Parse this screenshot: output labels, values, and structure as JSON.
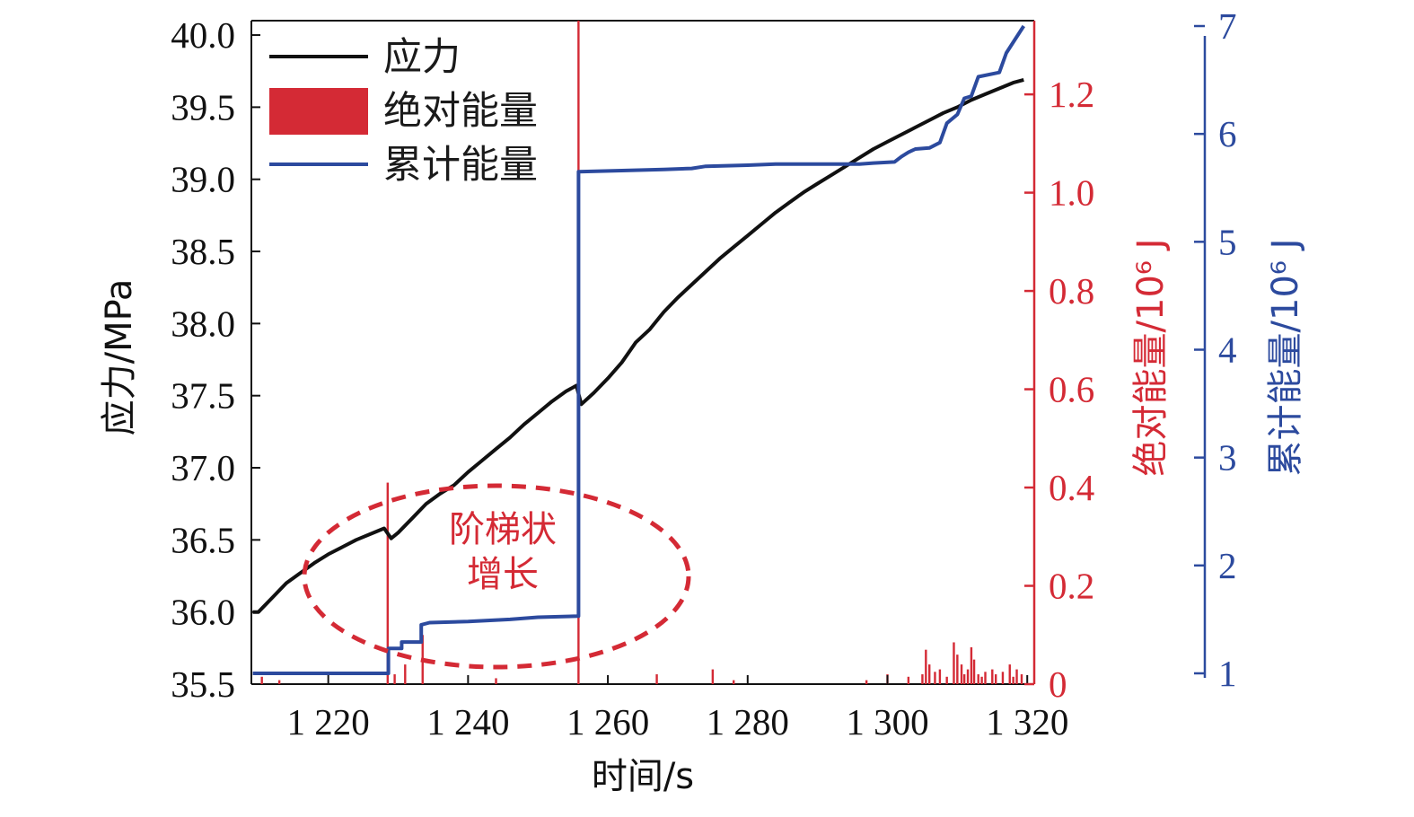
{
  "colors": {
    "stress": "#111111",
    "absolute_energy": "#d42a35",
    "cumulative_energy": "#2c4a9e",
    "axis": "#111111"
  },
  "chart_data": {
    "type": "line",
    "xlabel": "时间/s",
    "xlim": [
      1209,
      1321
    ],
    "x_ticks": [
      1220,
      1240,
      1260,
      1280,
      1300,
      1320
    ],
    "x_tick_labels": [
      "1 220",
      "1 240",
      "1 260",
      "1 280",
      "1 300",
      "1 320"
    ],
    "y_left": {
      "label": "应力/MPa",
      "lim": [
        35.5,
        40.1
      ],
      "ticks": [
        35.5,
        36.0,
        36.5,
        37.0,
        37.5,
        38.0,
        38.5,
        39.0,
        39.5,
        40.0
      ],
      "tick_labels": [
        "35.5",
        "36.0",
        "36.5",
        "37.0",
        "37.5",
        "38.0",
        "38.5",
        "39.0",
        "39.5",
        "40.0"
      ]
    },
    "y_right_1": {
      "label": "绝对能量/10⁶ J",
      "lim": [
        0,
        1.35
      ],
      "ticks": [
        0,
        0.2,
        0.4,
        0.6,
        0.8,
        1.0,
        1.2
      ],
      "tick_labels": [
        "0",
        "0.2",
        "0.4",
        "0.6",
        "0.8",
        "1.0",
        "1.2"
      ]
    },
    "y_right_2": {
      "label": "累计能量/10⁶ J",
      "lim": [
        0.9,
        7.05
      ],
      "ticks": [
        1,
        2,
        3,
        4,
        5,
        6,
        7
      ],
      "tick_labels": [
        "1",
        "2",
        "3",
        "4",
        "5",
        "6",
        "7"
      ]
    },
    "legend": {
      "position": "top-left",
      "entries": [
        "应力",
        "绝对能量",
        "累计能量"
      ]
    },
    "series": [
      {
        "name": "应力",
        "axis": "y_left",
        "kind": "line",
        "points": [
          [
            1209.2,
            36.0
          ],
          [
            1210,
            36.0
          ],
          [
            1212,
            36.1
          ],
          [
            1214,
            36.2
          ],
          [
            1216,
            36.27
          ],
          [
            1218,
            36.34
          ],
          [
            1220,
            36.4
          ],
          [
            1222,
            36.45
          ],
          [
            1224,
            36.5
          ],
          [
            1226,
            36.54
          ],
          [
            1228,
            36.58
          ],
          [
            1229,
            36.51
          ],
          [
            1230,
            36.55
          ],
          [
            1232,
            36.65
          ],
          [
            1234,
            36.75
          ],
          [
            1236,
            36.82
          ],
          [
            1238,
            36.88
          ],
          [
            1240,
            36.97
          ],
          [
            1242,
            37.05
          ],
          [
            1244,
            37.13
          ],
          [
            1246,
            37.21
          ],
          [
            1248,
            37.3
          ],
          [
            1250,
            37.38
          ],
          [
            1252,
            37.46
          ],
          [
            1254,
            37.53
          ],
          [
            1255.5,
            37.57
          ],
          [
            1256.2,
            37.44
          ],
          [
            1258,
            37.52
          ],
          [
            1260,
            37.62
          ],
          [
            1262,
            37.73
          ],
          [
            1264,
            37.87
          ],
          [
            1266,
            37.96
          ],
          [
            1268,
            38.08
          ],
          [
            1270,
            38.18
          ],
          [
            1272,
            38.27
          ],
          [
            1274,
            38.36
          ],
          [
            1276,
            38.45
          ],
          [
            1278,
            38.53
          ],
          [
            1280,
            38.61
          ],
          [
            1282,
            38.69
          ],
          [
            1284,
            38.77
          ],
          [
            1286,
            38.84
          ],
          [
            1288,
            38.91
          ],
          [
            1290,
            38.97
          ],
          [
            1292,
            39.03
          ],
          [
            1294,
            39.09
          ],
          [
            1296,
            39.15
          ],
          [
            1298,
            39.21
          ],
          [
            1300,
            39.26
          ],
          [
            1302,
            39.31
          ],
          [
            1304,
            39.36
          ],
          [
            1306,
            39.41
          ],
          [
            1308,
            39.46
          ],
          [
            1310,
            39.5
          ],
          [
            1312,
            39.55
          ],
          [
            1314,
            39.59
          ],
          [
            1316,
            39.63
          ],
          [
            1318,
            39.67
          ],
          [
            1319.5,
            39.69
          ]
        ]
      },
      {
        "name": "绝对能量",
        "axis": "y_right_1",
        "kind": "bar",
        "points": [
          [
            1210.5,
            0.015
          ],
          [
            1213,
            0.008
          ],
          [
            1228.5,
            0.41
          ],
          [
            1229.5,
            0.02
          ],
          [
            1231,
            0.04
          ],
          [
            1233.5,
            0.1
          ],
          [
            1244,
            0.012
          ],
          [
            1255.8,
            1.35
          ],
          [
            1267,
            0.02
          ],
          [
            1275,
            0.03
          ],
          [
            1278,
            0.008
          ],
          [
            1297,
            0.008
          ],
          [
            1300,
            0.02
          ],
          [
            1303,
            0.015
          ],
          [
            1305,
            0.02
          ],
          [
            1305.5,
            0.07
          ],
          [
            1306,
            0.04
          ],
          [
            1306.8,
            0.025
          ],
          [
            1307.5,
            0.03
          ],
          [
            1308.5,
            0.015
          ],
          [
            1309.5,
            0.085
          ],
          [
            1310,
            0.06
          ],
          [
            1310.6,
            0.04
          ],
          [
            1311,
            0.02
          ],
          [
            1311.5,
            0.03
          ],
          [
            1312,
            0.075
          ],
          [
            1312.4,
            0.05
          ],
          [
            1313,
            0.02
          ],
          [
            1313.5,
            0.015
          ],
          [
            1314,
            0.025
          ],
          [
            1315,
            0.03
          ],
          [
            1315.5,
            0.02
          ],
          [
            1316.5,
            0.025
          ],
          [
            1317.5,
            0.04
          ],
          [
            1318,
            0.015
          ],
          [
            1318.5,
            0.03
          ],
          [
            1319.2,
            0.02
          ]
        ]
      },
      {
        "name": "累计能量",
        "axis": "y_right_2",
        "kind": "step",
        "points": [
          [
            1209.2,
            1.0
          ],
          [
            1228.6,
            1.0
          ],
          [
            1228.6,
            1.23
          ],
          [
            1230.5,
            1.23
          ],
          [
            1230.5,
            1.29
          ],
          [
            1233.3,
            1.29
          ],
          [
            1233.3,
            1.45
          ],
          [
            1234.5,
            1.47
          ],
          [
            1240,
            1.48
          ],
          [
            1246,
            1.5
          ],
          [
            1250,
            1.52
          ],
          [
            1255.8,
            1.53
          ],
          [
            1255.8,
            5.65
          ],
          [
            1262,
            5.66
          ],
          [
            1268,
            5.67
          ],
          [
            1272,
            5.68
          ],
          [
            1274,
            5.7
          ],
          [
            1280,
            5.71
          ],
          [
            1284,
            5.72
          ],
          [
            1296,
            5.72
          ],
          [
            1298,
            5.73
          ],
          [
            1301,
            5.74
          ],
          [
            1302,
            5.79
          ],
          [
            1303,
            5.83
          ],
          [
            1304,
            5.86
          ],
          [
            1306,
            5.87
          ],
          [
            1307.5,
            5.92
          ],
          [
            1308.5,
            6.1
          ],
          [
            1310,
            6.18
          ],
          [
            1311,
            6.33
          ],
          [
            1312,
            6.35
          ],
          [
            1313,
            6.53
          ],
          [
            1316,
            6.57
          ],
          [
            1317,
            6.75
          ],
          [
            1318.5,
            6.9
          ],
          [
            1319.5,
            7.0
          ]
        ]
      }
    ],
    "annotations": [
      {
        "text_lines": [
          "阶梯状",
          "增长"
        ],
        "shape": "dashed-ellipse",
        "color": "#d42a35"
      }
    ]
  }
}
